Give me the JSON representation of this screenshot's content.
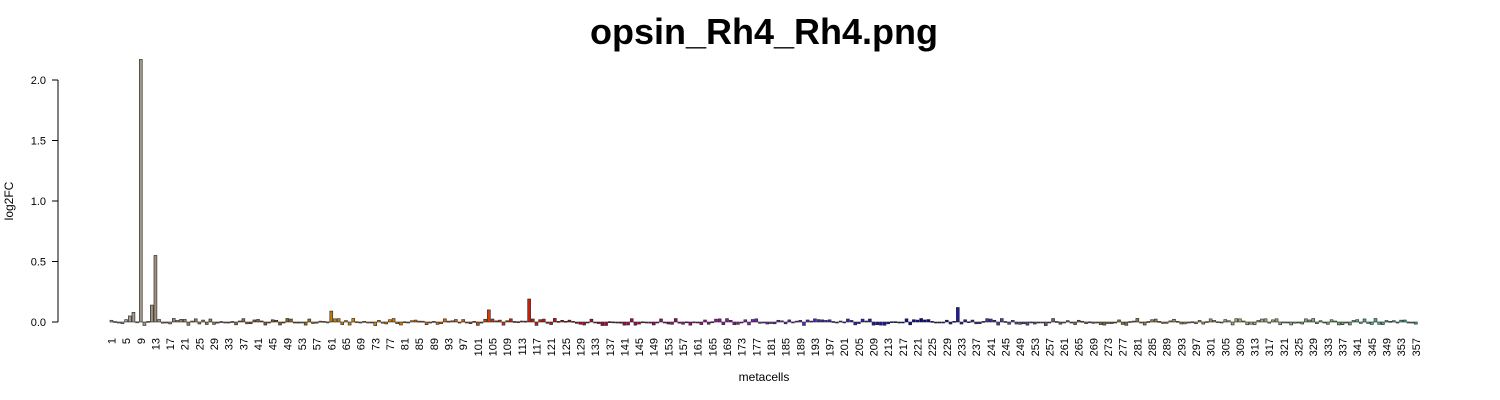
{
  "chart_data": {
    "type": "bar",
    "title": "opsin_Rh4_Rh4.png",
    "xlabel": "metacells",
    "ylabel": "log2FC",
    "ylim": [
      0,
      2.2
    ],
    "y_ticks": [
      0.0,
      0.5,
      1.0,
      1.5,
      2.0
    ],
    "y_tick_labels": [
      "0.0",
      "0.5",
      "1.0",
      "1.5",
      "2.0"
    ],
    "x_tick_labels": [
      "1",
      "5",
      "9",
      "13",
      "17",
      "21",
      "25",
      "29",
      "33",
      "37",
      "41",
      "45",
      "49",
      "53",
      "57",
      "61",
      "65",
      "69",
      "73",
      "77",
      "81",
      "85",
      "89",
      "93",
      "97",
      "101",
      "105",
      "109",
      "113",
      "117",
      "121",
      "125",
      "129",
      "133",
      "137",
      "141",
      "145",
      "149",
      "153",
      "157",
      "161",
      "165",
      "169",
      "173",
      "177",
      "181",
      "185",
      "189",
      "193",
      "197",
      "201",
      "205",
      "209",
      "213",
      "217",
      "221",
      "225",
      "229",
      "233",
      "237",
      "241",
      "245",
      "249",
      "253",
      "257",
      "261",
      "265",
      "269",
      "273",
      "277",
      "281",
      "285",
      "289",
      "293",
      "297",
      "301",
      "305",
      "309",
      "313",
      "317",
      "321",
      "325",
      "329",
      "333",
      "337",
      "341",
      "345",
      "349",
      "353",
      "357"
    ],
    "n_metacells": 357,
    "highlighted_values": {
      "9": 2.17,
      "12": 0.14,
      "13": 0.55,
      "7": 0.08,
      "6": 0.05,
      "115": 0.19,
      "232": 0.12,
      "61": 0.09,
      "104": 0.1
    },
    "baseline_amplitude": 0.03,
    "color_ramp": [
      "#aaa69e",
      "#9a7e5c",
      "#8a5a1c",
      "#d98a00",
      "#e06a00",
      "#cc2200",
      "#bb0033",
      "#aa0088",
      "#8822cc",
      "#3322cc",
      "#0000aa",
      "#5544aa",
      "#886644",
      "#a08848",
      "#aab070",
      "#66aa66",
      "#33aaaa"
    ],
    "grid": false,
    "legend": "none"
  }
}
